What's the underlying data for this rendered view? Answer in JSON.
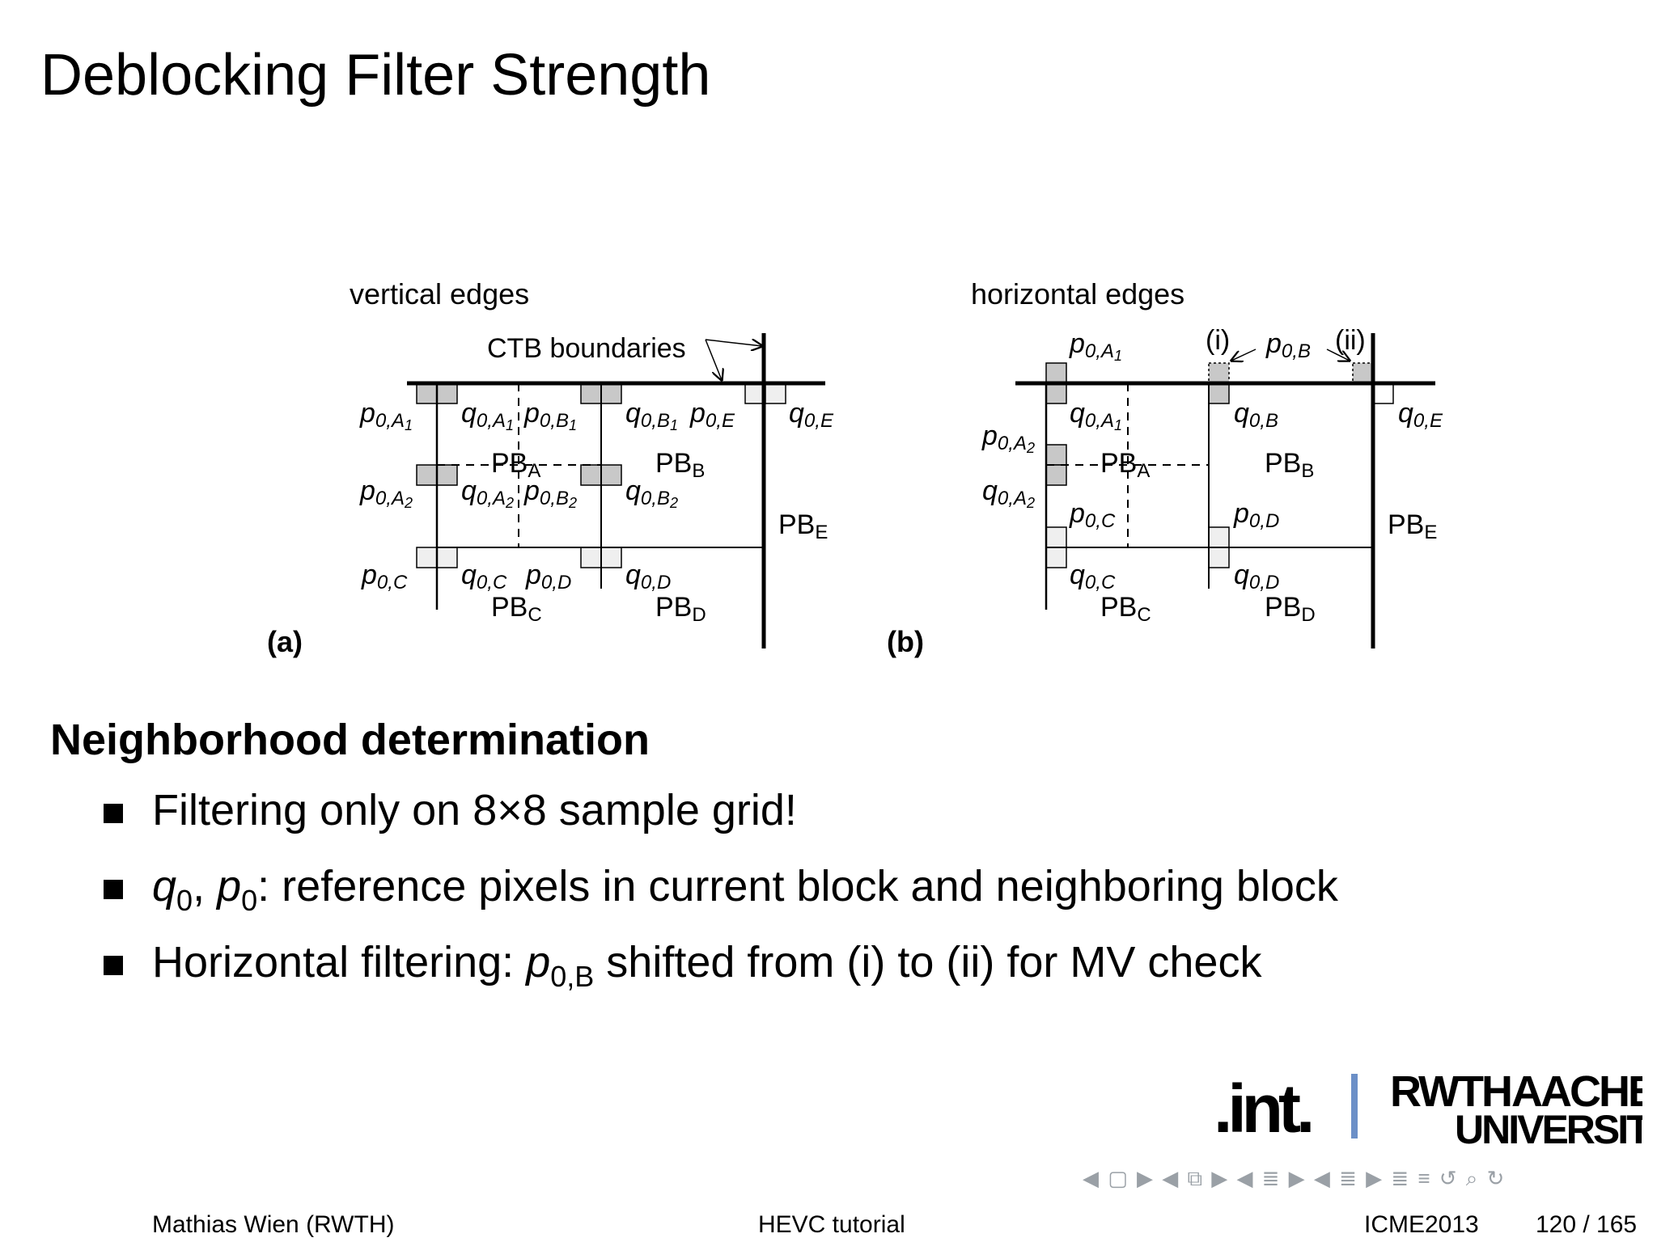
{
  "title": "Deblocking Filter Strength",
  "figure": {
    "panel_a": {
      "tag": "(a)",
      "heading": "vertical edges",
      "ctb_label": "CTB boundaries",
      "labels": {
        "pA1": "p",
        "pA1_sub": "0,A",
        "pA1_sub2": "1",
        "qA1": "q",
        "qA1_sub": "0,A",
        "qA1_sub2": "1",
        "pB1": "p",
        "pB1_sub": "0,B",
        "pB1_sub2": "1",
        "qB1": "q",
        "qB1_sub": "0,B",
        "qB1_sub2": "1",
        "pE": "p",
        "pE_sub": "0,E",
        "qE": "q",
        "qE_sub": "0,E",
        "pA2": "p",
        "pA2_sub": "0,A",
        "pA2_sub2": "2",
        "qA2": "q",
        "qA2_sub": "0,A",
        "qA2_sub2": "2",
        "pB2": "p",
        "pB2_sub": "0,B",
        "pB2_sub2": "2",
        "qB2": "q",
        "qB2_sub": "0,B",
        "qB2_sub2": "2",
        "pC": "p",
        "pC_sub": "0,C",
        "qC": "q",
        "qC_sub": "0,C",
        "pD": "p",
        "pD_sub": "0,D",
        "qD": "q",
        "qD_sub": "0,D",
        "PB": "PB",
        "PBA_sub": "A",
        "PBB_sub": "B",
        "PBC_sub": "C",
        "PBD_sub": "D",
        "PBE_sub": "E"
      }
    },
    "panel_b": {
      "tag": "(b)",
      "heading": "horizontal edges",
      "mark_i": "(i)",
      "mark_ii": "(ii)",
      "labels": {
        "pA1": "p",
        "pA1_sub": "0,A",
        "pA1_sub2": "1",
        "pB": "p",
        "pB_sub": "0,B",
        "qA1": "q",
        "qA1_sub": "0,A",
        "qA1_sub2": "1",
        "qB": "q",
        "qB_sub": "0,B",
        "qE": "q",
        "qE_sub": "0,E",
        "pA2": "p",
        "pA2_sub": "0,A",
        "pA2_sub2": "2",
        "qA2": "q",
        "qA2_sub": "0,A",
        "qA2_sub2": "2",
        "pC": "p",
        "pC_sub": "0,C",
        "pD": "p",
        "pD_sub": "0,D",
        "qC": "q",
        "qC_sub": "0,C",
        "qD": "q",
        "qD_sub": "0,D",
        "PB": "PB",
        "PBA_sub": "A",
        "PBB_sub": "B",
        "PBC_sub": "C",
        "PBD_sub": "D",
        "PBE_sub": "E"
      }
    }
  },
  "section": {
    "heading": "Neighborhood determination",
    "bullets": [
      {
        "text": "Filtering only on 8×8 sample grid!"
      },
      {
        "q": "q",
        "q_sub": "0",
        "sep": ", ",
        "p": "p",
        "p_sub": "0",
        "text": ": reference pixels in current block and neighboring block"
      },
      {
        "prefix": "Horizontal filtering: ",
        "p": "p",
        "p_sub": "0,B",
        "suffix": " shifted from (i) to (ii) for MV check"
      }
    ]
  },
  "logos": {
    "int_logo": ".int.",
    "rwth": "RWTH",
    "aachen": "AACHEN",
    "university": "UNIVERSITY"
  },
  "nav": {
    "symbols": "◀ ▢ ▶ ◀ ⧉ ▶ ◀ ≣ ▶ ◀ ≣ ▶ ≣ ≡ ↺ ⌕ ↻"
  },
  "footer": {
    "author": "Mathias Wien  (RWTH)",
    "talk": "HEVC tutorial",
    "event": "ICME2013",
    "page": "120 / 165"
  },
  "colors": {
    "grey_fill": "#c8c8c8",
    "light_fill": "#efefef",
    "logo_blue": "#6b8fc7",
    "logo_dark": "#3d5668"
  }
}
